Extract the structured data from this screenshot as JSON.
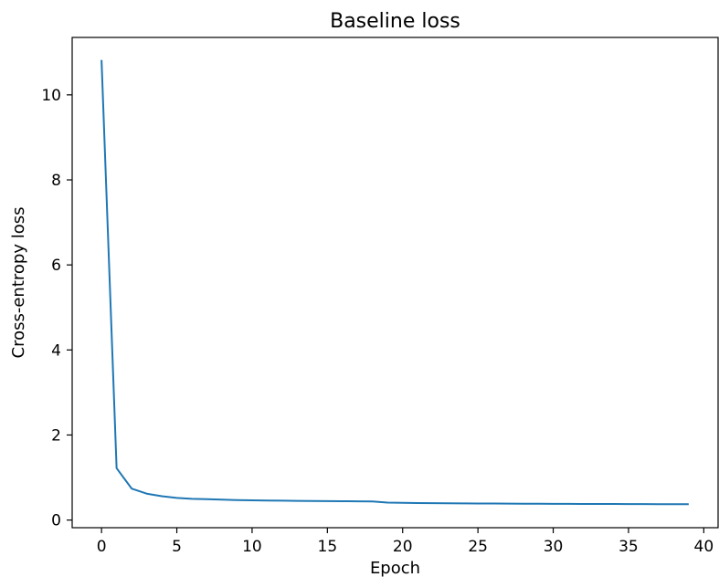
{
  "chart_data": {
    "type": "line",
    "title": "Baseline loss",
    "xlabel": "Epoch",
    "ylabel": "Cross-entropy loss",
    "xlim": [
      -1.95,
      40.95
    ],
    "ylim": [
      -0.18,
      11.35
    ],
    "xticks": [
      0,
      5,
      10,
      15,
      20,
      25,
      30,
      35,
      40
    ],
    "yticks": [
      0,
      2,
      4,
      6,
      8,
      10
    ],
    "grid": false,
    "series": [
      {
        "color": "#1f77b4",
        "x": [
          0,
          1,
          2,
          3,
          4,
          5,
          6,
          7,
          8,
          9,
          10,
          11,
          12,
          13,
          14,
          15,
          16,
          17,
          18,
          19,
          20,
          21,
          22,
          23,
          24,
          25,
          26,
          27,
          28,
          29,
          30,
          31,
          32,
          33,
          34,
          35,
          36,
          37,
          38,
          39
        ],
        "y": [
          10.82,
          1.22,
          0.74,
          0.62,
          0.56,
          0.52,
          0.5,
          0.49,
          0.48,
          0.47,
          0.465,
          0.46,
          0.455,
          0.45,
          0.447,
          0.445,
          0.443,
          0.44,
          0.438,
          0.41,
          0.405,
          0.4,
          0.398,
          0.395,
          0.392,
          0.39,
          0.388,
          0.386,
          0.385,
          0.383,
          0.382,
          0.38,
          0.379,
          0.378,
          0.377,
          0.376,
          0.375,
          0.374,
          0.373,
          0.372
        ]
      }
    ]
  }
}
